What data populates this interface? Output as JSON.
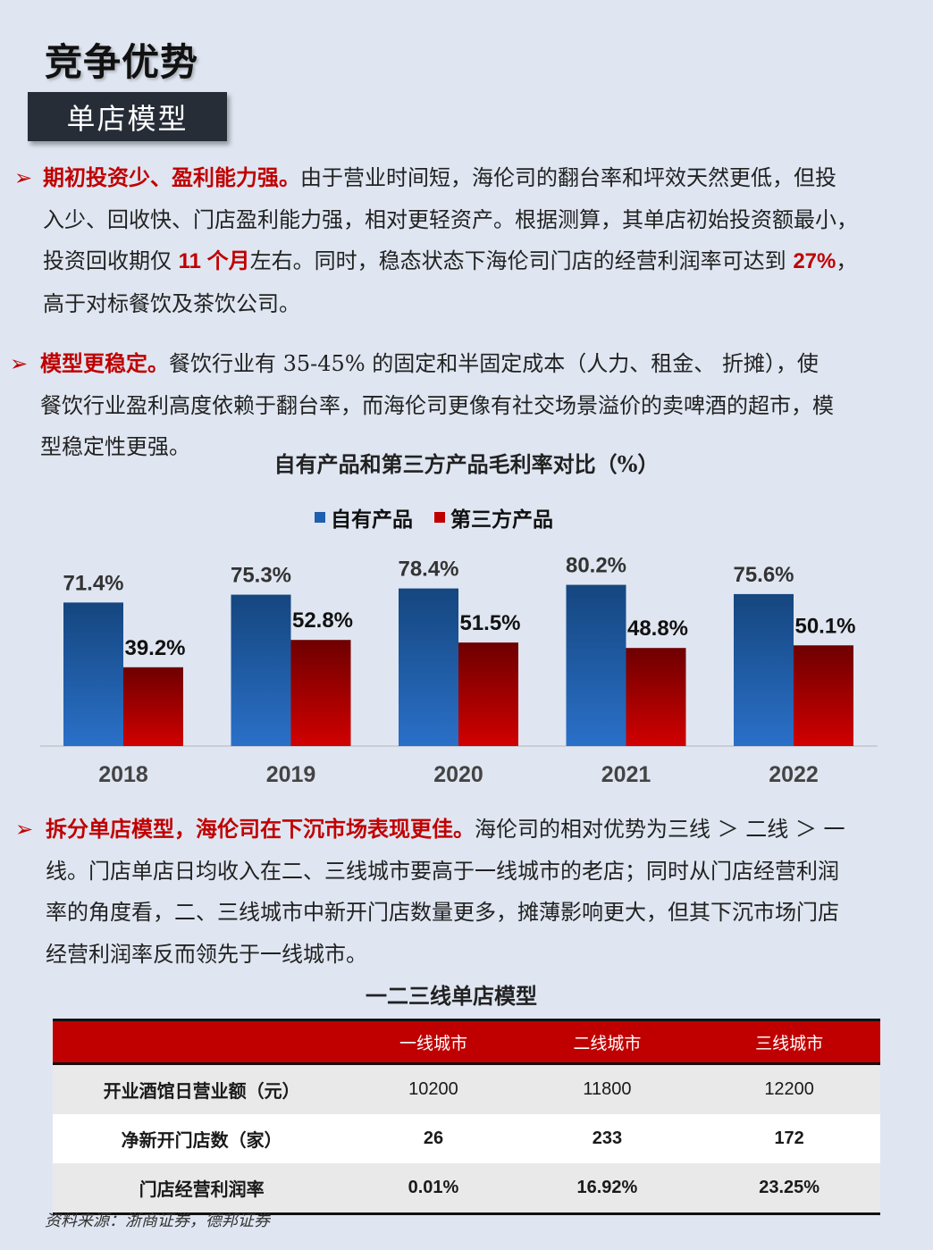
{
  "header": {
    "title": "竞争优势",
    "section_label": "单店模型"
  },
  "para1": {
    "lead": "期初投资少、盈利能力强。",
    "text1": "由于营业时间短，海伦司的翻台率和坪效天然更低，但投",
    "text2": "入少、回收快、门店盈利能力强，相对更轻资产。根据测算，其单店初始投资额最小，",
    "text3a": "投资回收期仅 ",
    "hl1": "11 个月",
    "text3b": "左右。同时，稳态状态下海伦司门店的经营利润率可达到 ",
    "hl2": "27%",
    "text3c": "，",
    "text4": "高于对标餐饮及茶饮公司。"
  },
  "para2": {
    "lead": "模型更稳定。",
    "text1": "餐饮行业有 35-45% 的固定和半固定成本（人力、租金、 折摊），使",
    "text2": "餐饮行业盈利高度依赖于翻台率，而海伦司更像有社交场景溢价的卖啤酒的超市，模",
    "text3": "型稳定性更强。"
  },
  "chart_data": {
    "type": "bar",
    "title": "自有产品和第三方产品毛利率对比（%）",
    "categories": [
      "2018",
      "2019",
      "2020",
      "2021",
      "2022"
    ],
    "series": [
      {
        "name": "自有产品",
        "values": [
          71.4,
          75.3,
          78.4,
          80.2,
          75.6
        ],
        "labels": [
          "71.4%",
          "75.3%",
          "78.4%",
          "80.2%",
          "75.6%"
        ],
        "color": "#1f5fb0"
      },
      {
        "name": "第三方产品",
        "values": [
          39.2,
          52.8,
          51.5,
          48.8,
          50.1
        ],
        "labels": [
          "39.2%",
          "52.8%",
          "51.5%",
          "48.8%",
          "50.1%"
        ],
        "color": "#b00000"
      }
    ],
    "legend_position": "top-center"
  },
  "para3": {
    "lead": "拆分单店模型，海伦司在下沉市场表现更佳。",
    "text1": "海伦司的相对优势为三线 ＞ 二线 ＞ 一",
    "text2": "线。门店单店日均收入在二、三线城市要高于一线城市的老店；同时从门店经营利润",
    "text3": "率的角度看，二、三线城市中新开门店数量更多，摊薄影响更大，但其下沉市场门店",
    "text4": "经营利润率反而领先于一线城市。"
  },
  "table": {
    "title": "一二三线单店模型",
    "headers": [
      "",
      "一线城市",
      "二线城市",
      "三线城市"
    ],
    "rows": [
      {
        "label": "开业酒馆日营业额（元）",
        "values": [
          "10200",
          "11800",
          "12200"
        ]
      },
      {
        "label": "净新开门店数（家）",
        "values": [
          "26",
          "233",
          "172"
        ]
      },
      {
        "label": "门店经营利润率",
        "values": [
          "0.01%",
          "16.92%",
          "23.25%"
        ]
      }
    ]
  },
  "source": "资料来源：浙商证券，德邦证券",
  "colors": {
    "accent_red": "#c00000",
    "dark_label": "#262d37",
    "page_bg": "#dfe6f1"
  },
  "icons": {
    "bullet": "red-arrow-icon"
  }
}
